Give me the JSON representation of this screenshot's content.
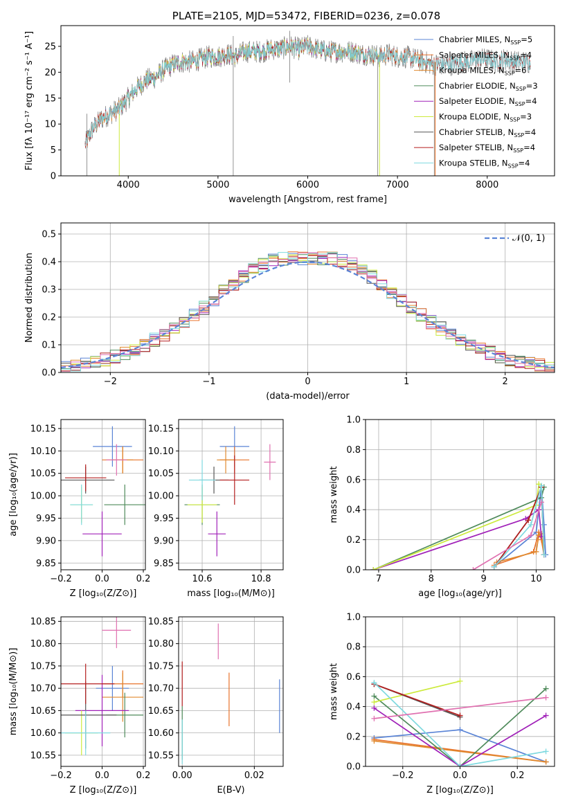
{
  "colors": {
    "Chabrier MILES": "#5a84d6",
    "Salpeter MILES": "#e8722a",
    "Kroupa MILES": "#e0892e",
    "Chabrier ELODIE": "#4e8a5a",
    "Salpeter ELODIE": "#a020b8",
    "Kroupa ELODIE": "#ccea3c",
    "Chabrier STELIB": "#555555",
    "Salpeter STELIB": "#b41e1e",
    "Kroupa STELIB": "#7ed9df",
    "normal": "#5a84d6",
    "pink": "#e070b0",
    "data": "#7a7a7a"
  },
  "chart_data": [
    {
      "id": "spectrum",
      "type": "line",
      "title": "PLATE=2105, MJD=53472, FIBERID=0236, z=0.078",
      "xlabel": "wavelength [Angstrom, rest frame]",
      "ylabel": "Flux [fλ 10⁻¹⁷ erg cm⁻² s⁻¹ A⁻¹]",
      "xlim": [
        3250,
        8750
      ],
      "ylim": [
        0,
        29
      ],
      "xticks": [
        "4000",
        "5000",
        "6000",
        "7000",
        "8000"
      ],
      "yticks": [
        "0",
        "5",
        "10",
        "15",
        "20",
        "25"
      ],
      "legend_position": "top-right",
      "legend": [
        {
          "label": "Chabrier MILES, N",
          "sub": "SSP",
          "n": "=5",
          "color_key": "Chabrier MILES"
        },
        {
          "label": "Salpeter MILES, N",
          "sub": "SSP",
          "n": "=4",
          "color_key": "Salpeter MILES"
        },
        {
          "label": "Kroupa MILES, N",
          "sub": "SSP",
          "n": "=6",
          "color_key": "Kroupa MILES"
        },
        {
          "label": "Chabrier ELODIE, N",
          "sub": "SSP",
          "n": "=3",
          "color_key": "Chabrier ELODIE"
        },
        {
          "label": "Salpeter ELODIE, N",
          "sub": "SSP",
          "n": "=4",
          "color_key": "Salpeter ELODIE"
        },
        {
          "label": "Kroupa ELODIE, N",
          "sub": "SSP",
          "n": "=3",
          "color_key": "Kroupa ELODIE"
        },
        {
          "label": "Chabrier STELIB, N",
          "sub": "SSP",
          "n": "=4",
          "color_key": "Chabrier STELIB"
        },
        {
          "label": "Salpeter STELIB, N",
          "sub": "SSP",
          "n": "=4",
          "color_key": "Salpeter STELIB"
        },
        {
          "label": "Kroupa STELIB, N",
          "sub": "SSP",
          "n": "=4",
          "color_key": "Kroupa STELIB"
        }
      ],
      "continuum": [
        [
          3520,
          6
        ],
        [
          3600,
          9
        ],
        [
          3700,
          11
        ],
        [
          3800,
          12
        ],
        [
          3900,
          13
        ],
        [
          4000,
          15
        ],
        [
          4100,
          17
        ],
        [
          4200,
          18.5
        ],
        [
          4300,
          19
        ],
        [
          4400,
          20.5
        ],
        [
          4500,
          21.5
        ],
        [
          4600,
          22
        ],
        [
          4700,
          22
        ],
        [
          4800,
          22.5
        ],
        [
          4900,
          23
        ],
        [
          5000,
          23
        ],
        [
          5100,
          23.5
        ],
        [
          5200,
          23
        ],
        [
          5300,
          24
        ],
        [
          5400,
          24
        ],
        [
          5500,
          24
        ],
        [
          5600,
          24.5
        ],
        [
          5700,
          24.5
        ],
        [
          5800,
          25
        ],
        [
          5900,
          24.5
        ],
        [
          6000,
          25
        ],
        [
          6100,
          24.5
        ],
        [
          6200,
          24
        ],
        [
          6300,
          24
        ],
        [
          6400,
          24
        ],
        [
          6500,
          24
        ],
        [
          6600,
          23.5
        ],
        [
          6700,
          23.5
        ],
        [
          6800,
          23
        ],
        [
          6900,
          23.5
        ],
        [
          7000,
          23
        ],
        [
          7100,
          23
        ],
        [
          7200,
          22.5
        ],
        [
          7300,
          22
        ],
        [
          7400,
          21.5
        ],
        [
          7500,
          21.5
        ],
        [
          7600,
          21.5
        ],
        [
          7700,
          22
        ],
        [
          7800,
          22
        ],
        [
          7900,
          22.5
        ],
        [
          8000,
          22.5
        ],
        [
          8100,
          22
        ],
        [
          8200,
          22.5
        ],
        [
          8300,
          22
        ],
        [
          8400,
          22
        ],
        [
          8480,
          22
        ]
      ],
      "model_ranges": {
        "MILES": [
          3540,
          7420
        ],
        "ELODIE": [
          3900,
          6800
        ],
        "STELIB": [
          3320,
          8480
        ]
      }
    },
    {
      "id": "residuals",
      "type": "histogram",
      "xlabel": "(data-model)/error",
      "ylabel": "Normed distribution",
      "xlim": [
        -2.5,
        2.5
      ],
      "ylim": [
        0,
        0.54
      ],
      "xticks": [
        "−2",
        "−1",
        "0",
        "1",
        "2"
      ],
      "yticks": [
        "0.0",
        "0.1",
        "0.2",
        "0.3",
        "0.4",
        "0.5"
      ],
      "legend_position": "top-right",
      "legend_label": "𝒩(0, 1)",
      "bin_width": 0.1,
      "bin_start": -2.5,
      "base_peak": 0.41
    },
    {
      "id": "age_vs_Z",
      "type": "scatter",
      "xlabel": "Z [log₁₀(Z/Z⊙)]",
      "ylabel": "age  [log₁₀(age/yr)]",
      "xlim": [
        -0.2,
        0.21
      ],
      "ylim": [
        9.835,
        10.17
      ],
      "xticks": [
        "−0.2",
        "0.0",
        "0.2"
      ],
      "yticks": [
        "9.85",
        "9.90",
        "9.95",
        "10.00",
        "10.05",
        "10.10",
        "10.15"
      ],
      "points": [
        {
          "s": "Chabrier MILES",
          "x": 0.05,
          "xe": 0.095,
          "y": 10.11,
          "ye": 0.045
        },
        {
          "s": "Salpeter MILES",
          "x": 0.1,
          "xe": 0.1,
          "y": 10.08,
          "ye": 0.03
        },
        {
          "s": "Kroupa MILES",
          "x": 0.1,
          "xe": 0.05,
          "y": 10.08,
          "ye": 0.03
        },
        {
          "s": "Chabrier ELODIE",
          "x": 0.11,
          "xe": 0.1,
          "y": 9.98,
          "ye": 0.045
        },
        {
          "s": "Salpeter ELODIE",
          "x": 0.0,
          "xe": 0.095,
          "y": 9.915,
          "ye": 0.05
        },
        {
          "s": "Kroupa ELODIE",
          "x": -0.1,
          "xe": 0.055,
          "y": 9.98,
          "ye": 0.04
        },
        {
          "s": "Chabrier STELIB",
          "x": -0.08,
          "xe": 0.14,
          "y": 10.035,
          "ye": 0.03
        },
        {
          "s": "Salpeter STELIB",
          "x": -0.08,
          "xe": 0.1,
          "y": 10.04,
          "ye": 0.03
        },
        {
          "s": "Kroupa STELIB",
          "x": -0.1,
          "xe": 0.055,
          "y": 9.98,
          "ye": 0.045
        },
        {
          "s": "pink",
          "x": 0.07,
          "xe": 0.05,
          "y": 10.08,
          "ye": 0.035
        }
      ]
    },
    {
      "id": "age_vs_mass",
      "type": "scatter",
      "xlabel": "mass [log₁₀(M/M⊙)]",
      "ylabel": "",
      "xlim": [
        10.52,
        10.875
      ],
      "ylim": [
        9.835,
        10.17
      ],
      "xticks": [
        "10.6",
        "10.8"
      ],
      "yticks": [
        "9.85",
        "9.90",
        "9.95",
        "10.00",
        "10.05",
        "10.10",
        "10.15"
      ],
      "points": [
        {
          "s": "Chabrier MILES",
          "x": 10.71,
          "xe": 0.05,
          "y": 10.11,
          "ye": 0.045
        },
        {
          "s": "Salpeter MILES",
          "x": 10.71,
          "xe": 0.05,
          "y": 10.08,
          "ye": 0.03
        },
        {
          "s": "Kroupa MILES",
          "x": 10.68,
          "xe": 0.03,
          "y": 10.08,
          "ye": 0.03
        },
        {
          "s": "Chabrier ELODIE",
          "x": 10.6,
          "xe": 0.06,
          "y": 9.98,
          "ye": 0.045
        },
        {
          "s": "Salpeter ELODIE",
          "x": 10.65,
          "xe": 0.03,
          "y": 9.915,
          "ye": 0.05
        },
        {
          "s": "Kroupa ELODIE",
          "x": 10.6,
          "xe": 0.05,
          "y": 9.98,
          "ye": 0.04
        },
        {
          "s": "Chabrier STELIB",
          "x": 10.64,
          "xe": 0.05,
          "y": 10.035,
          "ye": 0.03
        },
        {
          "s": "Salpeter STELIB",
          "x": 10.71,
          "xe": 0.05,
          "y": 10.035,
          "ye": 0.055
        },
        {
          "s": "Kroupa STELIB",
          "x": 10.6,
          "xe": 0.045,
          "y": 10.035,
          "ye": 0.045
        },
        {
          "s": "pink",
          "x": 10.83,
          "xe": 0.02,
          "y": 10.075,
          "ye": 0.04
        }
      ]
    },
    {
      "id": "weight_vs_age",
      "type": "line",
      "xlabel": "age  [log₁₀(age/yr)]",
      "ylabel": "mass weight",
      "xlim": [
        6.75,
        10.35
      ],
      "ylim": [
        0,
        1.0
      ],
      "xticks": [
        "7",
        "8",
        "9",
        "10"
      ],
      "yticks": [
        "0.0",
        "0.2",
        "0.4",
        "0.6",
        "0.8",
        "1.0"
      ],
      "series": [
        {
          "s": "Chabrier MILES",
          "x": [
            9.2,
            10.0,
            10.1,
            10.15,
            10.18
          ],
          "y": [
            0.02,
            0.25,
            0.55,
            0.3,
            0.1
          ]
        },
        {
          "s": "Salpeter MILES",
          "x": [
            9.2,
            9.95,
            10.05,
            10.1,
            10.15
          ],
          "y": [
            0.03,
            0.12,
            0.25,
            0.2,
            0.1
          ]
        },
        {
          "s": "Kroupa MILES",
          "x": [
            9.25,
            10.0,
            10.05,
            10.1,
            10.15
          ],
          "y": [
            0.05,
            0.12,
            0.23,
            0.24,
            0.1
          ]
        },
        {
          "s": "Chabrier ELODIE",
          "x": [
            6.9,
            10.1,
            10.15
          ],
          "y": [
            0.0,
            0.48,
            0.55
          ]
        },
        {
          "s": "Salpeter ELODIE",
          "x": [
            6.9,
            9.8,
            10.05,
            10.1
          ],
          "y": [
            0.0,
            0.34,
            0.4,
            0.22
          ]
        },
        {
          "s": "Kroupa ELODIE",
          "x": [
            6.9,
            10.0,
            10.05
          ],
          "y": [
            0.0,
            0.43,
            0.57
          ]
        },
        {
          "s": "Chabrier STELIB",
          "x": [
            9.2,
            9.85,
            10.1,
            10.15
          ],
          "y": [
            0.02,
            0.33,
            0.55,
            0.1
          ]
        },
        {
          "s": "Salpeter STELIB",
          "x": [
            9.2,
            9.85,
            10.1,
            10.15
          ],
          "y": [
            0.02,
            0.33,
            0.55,
            0.1
          ]
        },
        {
          "s": "Kroupa STELIB",
          "x": [
            9.2,
            9.9,
            10.1,
            10.15
          ],
          "y": [
            0.02,
            0.3,
            0.56,
            0.1
          ]
        },
        {
          "s": "pink",
          "x": [
            8.8,
            9.9,
            10.1
          ],
          "y": [
            0.0,
            0.23,
            0.45
          ]
        }
      ]
    },
    {
      "id": "mass_vs_Z",
      "type": "scatter",
      "xlabel": "Z [log₁₀(Z/Z⊙)]",
      "ylabel": "mass [log₁₀(M/M⊙)]",
      "xlim": [
        -0.2,
        0.21
      ],
      "ylim": [
        10.525,
        10.86
      ],
      "xticks": [
        "−0.2",
        "0.0",
        "0.2"
      ],
      "yticks": [
        "10.55",
        "10.60",
        "10.65",
        "10.70",
        "10.75",
        "10.80",
        "10.85"
      ],
      "points": [
        {
          "s": "Chabrier MILES",
          "x": 0.05,
          "xe": 0.08,
          "y": 10.7,
          "ye": 0.05
        },
        {
          "s": "Salpeter MILES",
          "x": 0.1,
          "xe": 0.1,
          "y": 10.71,
          "ye": 0.03
        },
        {
          "s": "Kroupa MILES",
          "x": 0.1,
          "xe": 0.1,
          "y": 10.68,
          "ye": 0.055
        },
        {
          "s": "Chabrier ELODIE",
          "x": 0.11,
          "xe": 0.09,
          "y": 10.64,
          "ye": 0.05
        },
        {
          "s": "Salpeter ELODIE",
          "x": 0.0,
          "xe": 0.13,
          "y": 10.65,
          "ye": 0.08
        },
        {
          "s": "Kroupa ELODIE",
          "x": -0.1,
          "xe": 0.08,
          "y": 10.6,
          "ye": 0.05
        },
        {
          "s": "Chabrier STELIB",
          "x": -0.08,
          "xe": 0.15,
          "y": 10.64,
          "ye": 0.075
        },
        {
          "s": "Salpeter STELIB",
          "x": -0.08,
          "xe": 0.14,
          "y": 10.71,
          "ye": 0.045
        },
        {
          "s": "Kroupa STELIB",
          "x": -0.08,
          "xe": 0.12,
          "y": 10.6,
          "ye": 0.05
        },
        {
          "s": "pink",
          "x": 0.07,
          "xe": 0.07,
          "y": 10.83,
          "ye": 0.04
        }
      ]
    },
    {
      "id": "mass_vs_ebv",
      "type": "scatter",
      "xlabel": "E(B-V)",
      "ylabel": "",
      "xlim": [
        -0.001,
        0.028
      ],
      "ylim": [
        10.525,
        10.86
      ],
      "xticks": [
        "0.00",
        "0.02"
      ],
      "yticks": [
        "10.55",
        "10.60",
        "10.65",
        "10.70",
        "10.75",
        "10.80",
        "10.85"
      ],
      "points": [
        {
          "s": "Chabrier MILES",
          "x": 0.027,
          "xe": 0,
          "y": 10.66,
          "ye": 0.06
        },
        {
          "s": "Salpeter MILES",
          "x": 0.013,
          "xe": 0,
          "y": 10.675,
          "ye": 0.06
        },
        {
          "s": "Chabrier ELODIE",
          "x": 0.0,
          "xe": 0,
          "y": 10.6,
          "ye": 0.06
        },
        {
          "s": "Salpeter STELIB",
          "x": 0.0,
          "xe": 0,
          "y": 10.71,
          "ye": 0.05
        },
        {
          "s": "Kroupa STELIB",
          "x": 0.0,
          "xe": 0,
          "y": 10.58,
          "ye": 0.05
        },
        {
          "s": "pink",
          "x": 0.01,
          "xe": 0,
          "y": 10.805,
          "ye": 0.04
        }
      ]
    },
    {
      "id": "weight_vs_Z",
      "type": "line",
      "xlabel": "Z [log₁₀(Z/Z⊙)]",
      "ylabel": "mass weight",
      "xlim": [
        -0.33,
        0.33
      ],
      "ylim": [
        0,
        1.0
      ],
      "xticks": [
        "−0.2",
        "0.0",
        "0.2"
      ],
      "yticks": [
        "0.0",
        "0.2",
        "0.4",
        "0.6",
        "0.8",
        "1.0"
      ],
      "series": [
        {
          "s": "Chabrier MILES",
          "x": [
            -0.3,
            0.0,
            0.3
          ],
          "y": [
            0.19,
            0.245,
            0.03
          ]
        },
        {
          "s": "Salpeter MILES",
          "x": [
            -0.3,
            0.3
          ],
          "y": [
            0.18,
            0.03
          ]
        },
        {
          "s": "Kroupa MILES",
          "x": [
            -0.3,
            0.3
          ],
          "y": [
            0.17,
            0.03
          ]
        },
        {
          "s": "Chabrier ELODIE",
          "x": [
            -0.3,
            0.0,
            0.3
          ],
          "y": [
            0.47,
            0.0,
            0.52
          ]
        },
        {
          "s": "Salpeter ELODIE",
          "x": [
            -0.3,
            0.0,
            0.3
          ],
          "y": [
            0.39,
            0.0,
            0.34
          ]
        },
        {
          "s": "Kroupa ELODIE",
          "x": [
            -0.3,
            0.0
          ],
          "y": [
            0.43,
            0.57
          ]
        },
        {
          "s": "Chabrier STELIB",
          "x": [
            -0.3,
            0.0
          ],
          "y": [
            0.55,
            0.33
          ]
        },
        {
          "s": "Salpeter STELIB",
          "x": [
            -0.3,
            0.0
          ],
          "y": [
            0.55,
            0.34
          ]
        },
        {
          "s": "Kroupa STELIB",
          "x": [
            -0.3,
            0.0,
            0.3
          ],
          "y": [
            0.56,
            0.0,
            0.1
          ]
        },
        {
          "s": "pink",
          "x": [
            -0.3,
            0.3
          ],
          "y": [
            0.32,
            0.46
          ]
        }
      ]
    }
  ]
}
